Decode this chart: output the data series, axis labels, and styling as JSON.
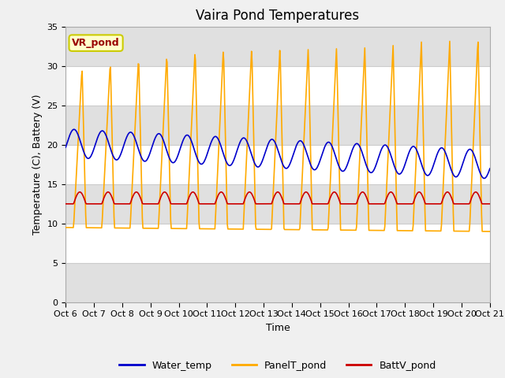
{
  "title": "Vaira Pond Temperatures",
  "xlabel": "Time",
  "ylabel": "Temperature (C), Battery (V)",
  "ylim": [
    0,
    35
  ],
  "yticks": [
    0,
    5,
    10,
    15,
    20,
    25,
    30,
    35
  ],
  "x_tick_labels": [
    "Oct 6",
    "Oct 7",
    "Oct 8",
    "Oct 9",
    "Oct 10",
    "Oct 11",
    "Oct 12",
    "Oct 13",
    "Oct 14",
    "Oct 15",
    "Oct 16",
    "Oct 17",
    "Oct 18",
    "Oct 19",
    "Oct 20",
    "Oct 21"
  ],
  "water_temp_color": "#0000cc",
  "panel_color": "#ffaa00",
  "batt_color": "#cc0000",
  "annotation_text": "VR_pond",
  "annotation_bg": "#ffffcc",
  "annotation_border": "#cccc00",
  "legend_labels": [
    "Water_temp",
    "PanelT_pond",
    "BattV_pond"
  ],
  "title_fontsize": 12,
  "axis_fontsize": 9,
  "tick_fontsize": 8,
  "legend_fontsize": 9,
  "fig_bg_color": "#f0f0f0",
  "plot_bg_color": "#ffffff",
  "band_color_dark": "#e0e0e0",
  "band_color_light": "#f5f5f5"
}
